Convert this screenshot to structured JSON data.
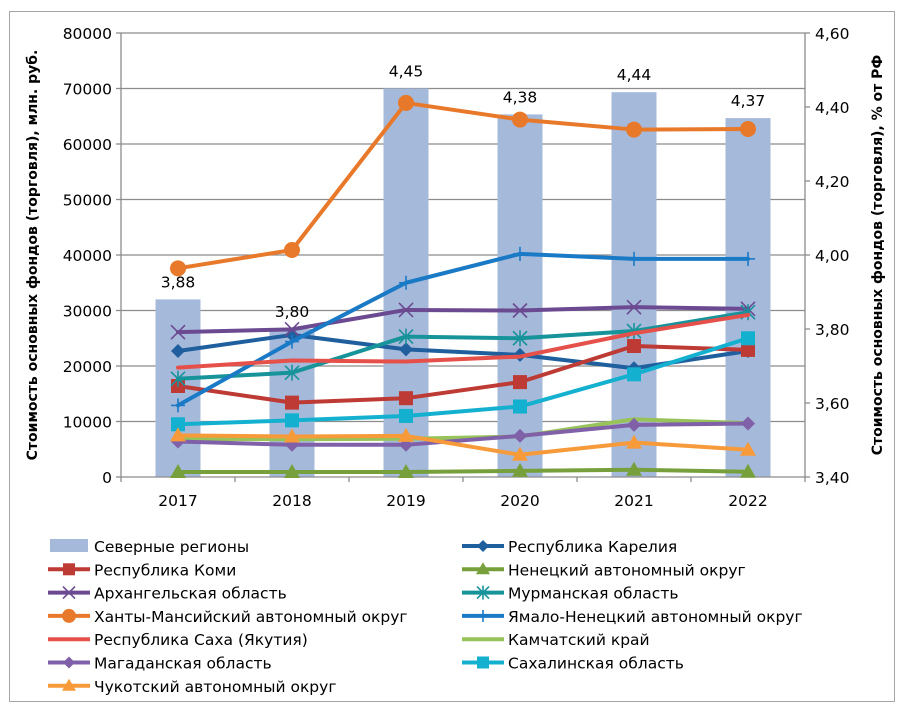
{
  "chart_data": {
    "type": "bar+line",
    "title": "",
    "categories": [
      "2017",
      "2018",
      "2019",
      "2020",
      "2021",
      "2022"
    ],
    "y_left": {
      "label": "Стоимость основных фондов (торговля), млн. руб.",
      "range": [
        0,
        80000
      ],
      "ticks": [
        "0",
        "10000",
        "20000",
        "30000",
        "40000",
        "50000",
        "60000",
        "70000",
        "80000"
      ],
      "tick_values": [
        0,
        10000,
        20000,
        30000,
        40000,
        50000,
        60000,
        70000,
        80000
      ]
    },
    "y_right": {
      "label": "Стоимость основных фондов (торговля), % от РФ",
      "range": [
        3.4,
        4.6
      ],
      "ticks": [
        "3,40",
        "3,60",
        "3,80",
        "4,00",
        "4,20",
        "4,40",
        "4,60"
      ],
      "tick_values": [
        3.4,
        3.6,
        3.8,
        4.0,
        4.2,
        4.4,
        4.6
      ]
    },
    "grid": true,
    "legend_position": "bottom",
    "bar_series": {
      "name": "Северные регионы",
      "axis": "right",
      "color": "#a5b9db",
      "values": [
        3.88,
        3.8,
        4.45,
        4.38,
        4.44,
        4.37
      ],
      "labels": [
        "3,88",
        "3,80",
        "4,45",
        "4,38",
        "4,44",
        "4,37"
      ]
    },
    "series": [
      {
        "name": "Республика Карелия",
        "color": "#1f5f9e",
        "marker": "diamond",
        "values": [
          22700,
          25600,
          23000,
          22000,
          19600,
          22700
        ]
      },
      {
        "name": "Республика Коми",
        "color": "#be3a34",
        "marker": "square",
        "values": [
          16400,
          13400,
          14200,
          17100,
          23600,
          22900
        ]
      },
      {
        "name": "Ненецкий автономный округ",
        "color": "#77a03c",
        "marker": "triangle",
        "values": [
          900,
          900,
          900,
          1100,
          1300,
          950
        ]
      },
      {
        "name": "Архангельская область",
        "color": "#6b4a91",
        "marker": "x",
        "values": [
          26100,
          26600,
          30100,
          30000,
          30600,
          30300
        ]
      },
      {
        "name": "Мурманская область",
        "color": "#17939a",
        "marker": "asterisk",
        "values": [
          17700,
          18800,
          25300,
          25000,
          26300,
          29700
        ]
      },
      {
        "name": "Ханты-Мансийский автономный округ",
        "color": "#e8792a",
        "marker": "circle",
        "values": [
          37600,
          40900,
          67400,
          64400,
          62600,
          62700
        ]
      },
      {
        "name": "Ямало-Ненецкий автономный округ",
        "color": "#1a7ac6",
        "marker": "plus",
        "values": [
          12900,
          24400,
          35000,
          40200,
          39300,
          39300
        ]
      },
      {
        "name": "Республика Саха (Якутия)",
        "color": "#e5504a",
        "marker": "none",
        "values": [
          19700,
          21000,
          20800,
          21700,
          25900,
          29200
        ]
      },
      {
        "name": "Камчатский край",
        "color": "#97c35a",
        "marker": "none",
        "values": [
          6900,
          6800,
          6900,
          7300,
          10400,
          9700
        ]
      },
      {
        "name": "Магаданская область",
        "color": "#8060a8",
        "marker": "diamond",
        "values": [
          6400,
          5800,
          5800,
          7400,
          9400,
          9650
        ]
      },
      {
        "name": "Сахалинская область",
        "color": "#14b0cf",
        "marker": "square",
        "values": [
          9500,
          10200,
          11000,
          12700,
          18500,
          25000
        ]
      },
      {
        "name": "Чукотский автономный округ",
        "color": "#f79a3a",
        "marker": "triangle",
        "values": [
          7500,
          7300,
          7400,
          4000,
          6200,
          4900
        ]
      }
    ]
  }
}
